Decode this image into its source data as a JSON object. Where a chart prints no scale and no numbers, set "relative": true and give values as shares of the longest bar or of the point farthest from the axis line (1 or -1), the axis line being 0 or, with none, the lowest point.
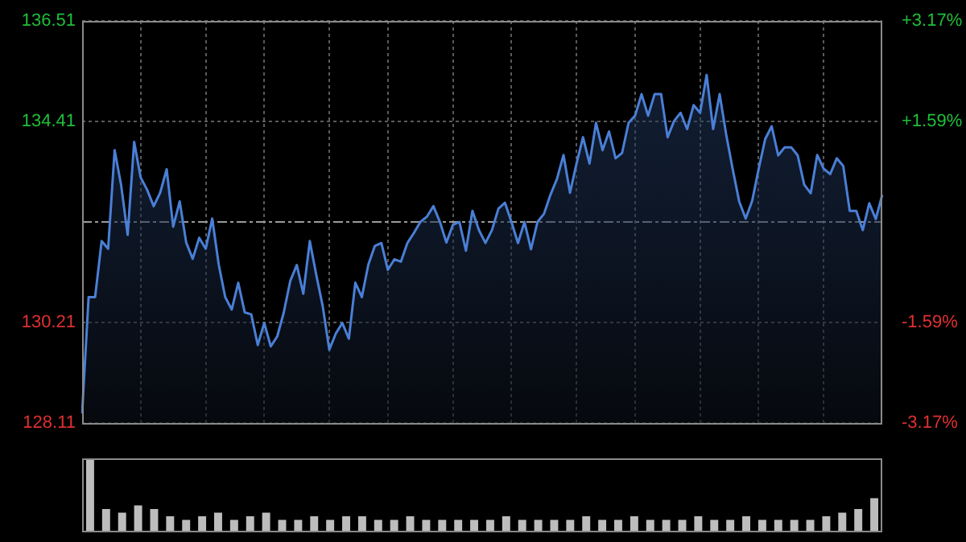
{
  "chart_data": [
    {
      "type": "area",
      "tick_labels": "y",
      "grid": true,
      "categories": [
        null,
        null,
        null,
        null,
        null,
        null,
        null,
        null,
        null,
        null,
        null,
        null,
        null,
        null,
        null,
        null,
        null,
        null,
        null,
        null,
        null,
        null,
        null,
        null,
        null,
        null,
        null,
        null,
        null,
        null,
        null,
        null,
        null,
        null,
        null,
        null,
        null,
        null,
        null,
        null,
        null,
        null,
        null,
        null,
        null,
        null,
        null,
        null,
        null,
        null,
        null,
        null,
        null,
        null,
        null,
        null,
        null,
        null,
        null,
        null,
        null,
        null,
        null,
        null,
        null,
        null,
        null,
        null,
        null,
        null,
        null,
        null,
        null,
        null,
        null,
        null,
        null,
        null,
        null,
        null,
        null,
        null,
        null,
        null,
        null,
        null,
        null,
        null,
        null,
        null,
        null,
        null,
        null,
        null,
        null,
        null,
        null,
        null,
        null,
        null,
        null,
        null,
        null,
        null,
        null,
        null,
        null,
        null,
        null,
        null,
        null,
        null,
        null,
        null,
        null,
        null,
        null,
        null,
        null,
        null,
        null,
        null,
        null,
        null
      ],
      "ylim": [
        128.11,
        136.51
      ],
      "yticks": [
        128.11,
        130.21,
        134.41,
        136.51
      ],
      "y2lim": [
        -3.17,
        3.17
      ],
      "y2ticks": [
        {
          "value": -3.17,
          "label": "-3.17%"
        },
        {
          "value": -1.59,
          "label": "-1.59%"
        },
        {
          "value": 1.59,
          "label": "+1.59%"
        },
        {
          "value": 3.17,
          "label": "+3.17%"
        }
      ],
      "ref_lines": [
        {
          "axis": "y",
          "value": 132.31,
          "color": "#9a9a9a",
          "line_style": "dashed"
        }
      ],
      "series": [
        {
          "color": "#4a7fd6",
          "values": [
            128.31,
            130.74,
            130.74,
            131.91,
            131.75,
            133.81,
            133.08,
            132.04,
            133.98,
            133.24,
            132.98,
            132.64,
            132.92,
            133.41,
            132.21,
            132.74,
            131.88,
            131.54,
            131.98,
            131.75,
            132.38,
            131.42,
            130.74,
            130.48,
            131.04,
            130.42,
            130.38,
            129.74,
            130.2,
            129.71,
            129.92,
            130.42,
            131.08,
            131.41,
            130.81,
            131.91,
            131.2,
            130.54,
            129.64,
            129.98,
            130.2,
            129.87,
            131.04,
            130.74,
            131.42,
            131.81,
            131.87,
            131.31,
            131.53,
            131.48,
            131.87,
            132.08,
            132.31,
            132.42,
            132.64,
            132.31,
            131.88,
            132.25,
            132.31,
            131.71,
            132.54,
            132.14,
            131.87,
            132.14,
            132.59,
            132.71,
            132.31,
            131.87,
            132.31,
            131.74,
            132.31,
            132.48,
            132.88,
            133.21,
            133.71,
            132.92,
            133.53,
            134.08,
            133.53,
            134.38,
            133.81,
            134.2,
            133.64,
            133.75,
            134.38,
            134.53,
            134.98,
            134.53,
            134.98,
            134.98,
            134.08,
            134.42,
            134.59,
            134.25,
            134.75,
            134.59,
            135.38,
            134.25,
            134.98,
            134.14,
            133.42,
            132.74,
            132.38,
            132.75,
            133.42,
            134.04,
            134.31,
            133.7,
            133.87,
            133.87,
            133.7,
            133.09,
            132.91,
            133.71,
            133.42,
            133.31,
            133.64,
            133.48,
            132.54,
            132.54,
            132.14,
            132.7,
            132.37,
            132.88
          ]
        }
      ]
    },
    {
      "type": "bar",
      "relative": true,
      "color": "#bdbdbd",
      "categories": [
        null,
        null,
        null,
        null,
        null,
        null,
        null,
        null,
        null,
        null,
        null,
        null,
        null,
        null,
        null,
        null,
        null,
        null,
        null,
        null,
        null,
        null,
        null,
        null,
        null,
        null,
        null,
        null,
        null,
        null,
        null,
        null,
        null,
        null,
        null,
        null,
        null,
        null,
        null,
        null,
        null,
        null,
        null,
        null,
        null,
        null,
        null,
        null,
        null,
        null
      ],
      "values": [
        1,
        0.3,
        0.25,
        0.35,
        0.3,
        0.2,
        0.15,
        0.2,
        0.25,
        0.15,
        0.2,
        0.25,
        0.15,
        0.15,
        0.2,
        0.15,
        0.2,
        0.2,
        0.15,
        0.15,
        0.2,
        0.15,
        0.15,
        0.15,
        0.15,
        0.15,
        0.2,
        0.15,
        0.15,
        0.15,
        0.15,
        0.2,
        0.15,
        0.15,
        0.2,
        0.15,
        0.15,
        0.15,
        0.2,
        0.15,
        0.15,
        0.2,
        0.15,
        0.15,
        0.15,
        0.15,
        0.2,
        0.25,
        0.3,
        0.45
      ]
    }
  ]
}
